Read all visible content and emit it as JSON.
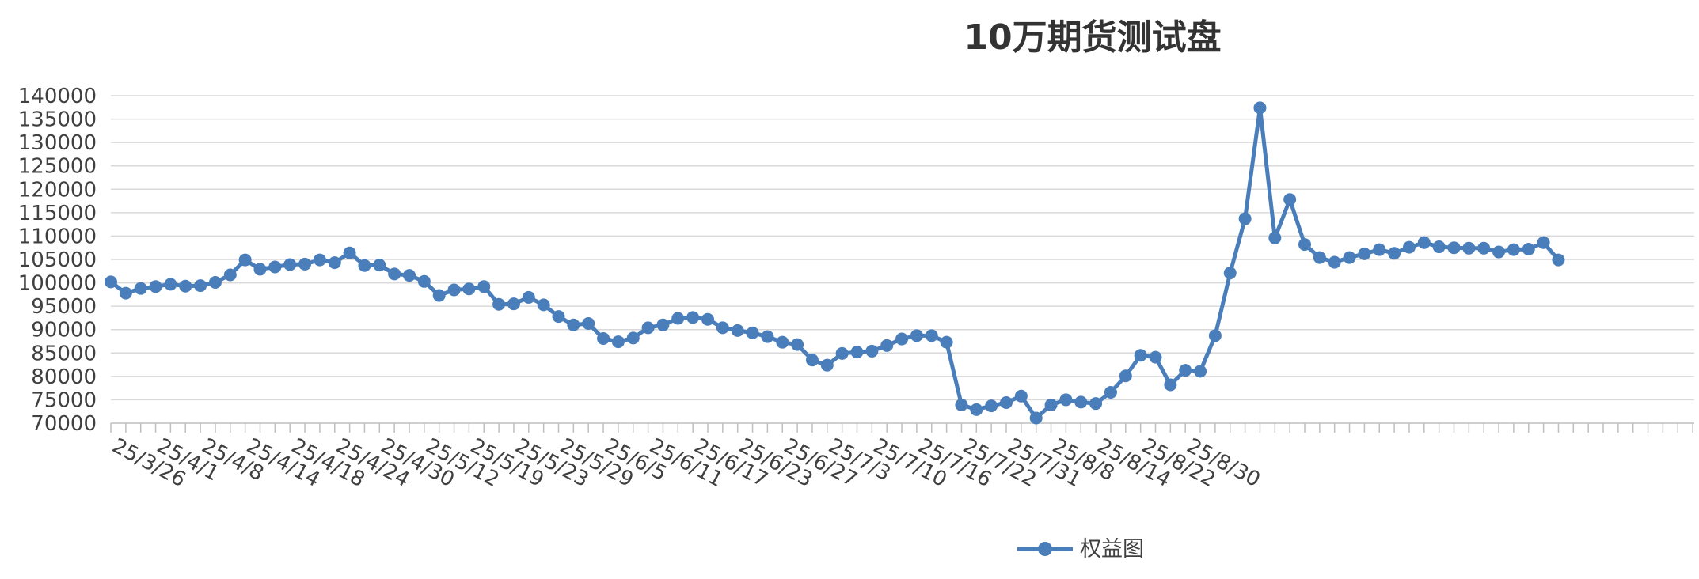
{
  "chart_data": {
    "type": "line",
    "title": "10万期货测试盘",
    "xlabel": "",
    "ylabel": "",
    "ylim": [
      70000,
      140000
    ],
    "y_ticks": [
      70000,
      75000,
      80000,
      85000,
      90000,
      95000,
      100000,
      105000,
      110000,
      115000,
      120000,
      125000,
      130000,
      135000,
      140000
    ],
    "x_tick_labels": [
      "25/3/26",
      "25/4/1",
      "25/4/8",
      "25/4/14",
      "25/4/18",
      "25/4/24",
      "25/4/30",
      "25/5/12",
      "25/5/19",
      "25/5/23",
      "25/5/29",
      "25/6/5",
      "25/6/11",
      "25/6/17",
      "25/6/23",
      "25/6/27",
      "25/7/3",
      "25/7/10",
      "25/7/16",
      "25/7/22",
      "25/7/31",
      "25/8/8",
      "25/8/14",
      "25/8/22",
      "25/8/30"
    ],
    "grid": true,
    "legend_position": "bottom",
    "series": [
      {
        "name": "权益图",
        "color": "#4a7ebb",
        "values": [
          100200,
          97800,
          98800,
          99200,
          99700,
          99300,
          99400,
          100100,
          101700,
          104900,
          102900,
          103400,
          103900,
          104000,
          104900,
          104300,
          106400,
          103700,
          103800,
          101900,
          101600,
          100300,
          97300,
          98500,
          98700,
          99200,
          95400,
          95500,
          96900,
          95300,
          92800,
          91000,
          91300,
          88100,
          87400,
          88200,
          90400,
          91000,
          92400,
          92600,
          92200,
          90400,
          89800,
          89300,
          88500,
          87300,
          86800,
          83500,
          82400,
          84900,
          85200,
          85400,
          86600,
          88000,
          88700,
          88700,
          87300,
          73900,
          72900,
          73700,
          74400,
          75800,
          71100,
          73900,
          75000,
          74500,
          74200,
          76600,
          80100,
          84500,
          84100,
          78200,
          81300,
          81100,
          88700,
          102100,
          113700,
          137400,
          109600,
          117800,
          108200,
          105400,
          104400,
          105400,
          106200,
          107100,
          106300,
          107600,
          108600,
          107700,
          107500,
          107400,
          107400,
          106600,
          107100,
          107200,
          108600,
          104900
        ]
      }
    ]
  }
}
